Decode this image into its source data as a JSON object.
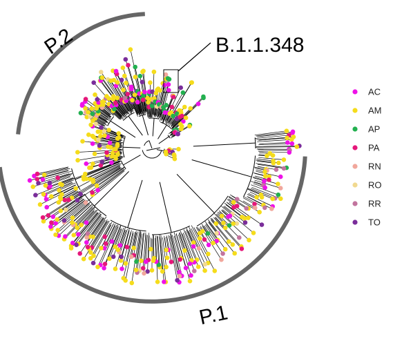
{
  "annotations": {
    "clade_p2": "P.2",
    "clade_p1": "P.1",
    "lineage_callout": "B.1.1.348"
  },
  "legend": {
    "items": [
      {
        "label": "AC",
        "color": "#ee12e8"
      },
      {
        "label": "AM",
        "color": "#f5dc1c"
      },
      {
        "label": "AP",
        "color": "#22b04f"
      },
      {
        "label": "PA",
        "color": "#e5177a"
      },
      {
        "label": "RN",
        "color": "#f1a79c"
      },
      {
        "label": "RO",
        "color": "#f1d990"
      },
      {
        "label": "RR",
        "color": "#c2749e"
      },
      {
        "label": "TO",
        "color": "#7a2d9a"
      }
    ]
  },
  "colors": {
    "branch": "#000000",
    "clade_arc": "#666666",
    "highlight_box": "#000000"
  }
}
